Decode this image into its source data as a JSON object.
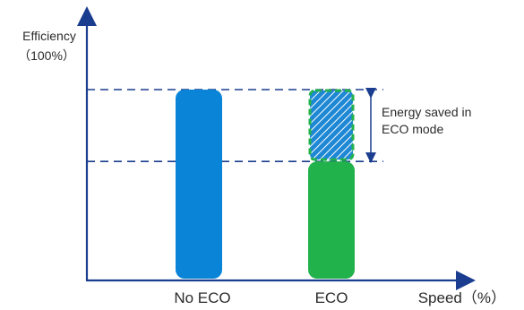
{
  "chart_data": {
    "type": "bar",
    "categories": [
      "No ECO",
      "ECO"
    ],
    "values": [
      100,
      62
    ],
    "saved_values": [
      0,
      38
    ],
    "ylabel": "Efficiency",
    "ylabel_unit": "（100%）",
    "xlabel": "Speed（%）",
    "ylim": [
      0,
      100
    ],
    "annotation": "Energy saved in\nECO mode",
    "grid": false,
    "legend": "none"
  },
  "colors": {
    "axis": "#1a3d8f",
    "no_eco_bar": "#0a84d6",
    "eco_bar": "#22b24c",
    "saved_fill": "#1e88d4",
    "saved_border": "#22b24c",
    "dashed_line": "#1a3d8f"
  }
}
